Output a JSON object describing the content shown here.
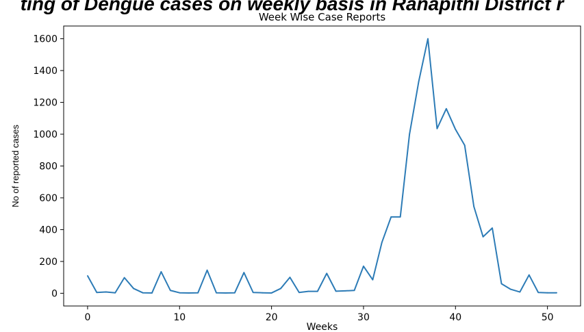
{
  "page": {
    "cut_title": "ting of Dengue cases on weekly basis in Ranapithi District r"
  },
  "chart_data": {
    "type": "line",
    "title": "Week Wise Case Reports",
    "xlabel": "Weeks",
    "ylabel": "No of reported cases",
    "xlim": [
      -2.6,
      53.6
    ],
    "ylim": [
      -80,
      1680
    ],
    "xticks": [
      0,
      10,
      20,
      30,
      40,
      50
    ],
    "yticks": [
      0,
      200,
      400,
      600,
      800,
      1000,
      1200,
      1400,
      1600
    ],
    "grid": false,
    "line_color": "#2c7bb6",
    "series": [
      {
        "x": [
          0,
          1,
          2,
          3,
          4,
          5,
          6,
          7,
          8,
          9,
          10,
          11,
          12,
          13,
          14,
          15,
          16,
          17,
          18,
          19,
          20,
          21,
          22,
          23,
          24,
          25,
          26,
          27,
          28,
          29,
          30,
          31,
          32,
          33,
          34,
          35,
          36,
          37,
          38,
          39,
          40,
          41,
          42,
          43,
          44,
          45,
          46,
          47,
          48,
          49,
          50,
          51
        ],
        "values": [
          110,
          5,
          8,
          3,
          98,
          30,
          3,
          2,
          135,
          18,
          3,
          2,
          3,
          145,
          3,
          2,
          3,
          130,
          5,
          3,
          2,
          30,
          100,
          5,
          12,
          12,
          125,
          13,
          15,
          18,
          170,
          85,
          320,
          480,
          480,
          1000,
          1330,
          1600,
          1035,
          1160,
          1030,
          930,
          545,
          355,
          410,
          60,
          25,
          8,
          115,
          5,
          3,
          3
        ]
      }
    ]
  }
}
